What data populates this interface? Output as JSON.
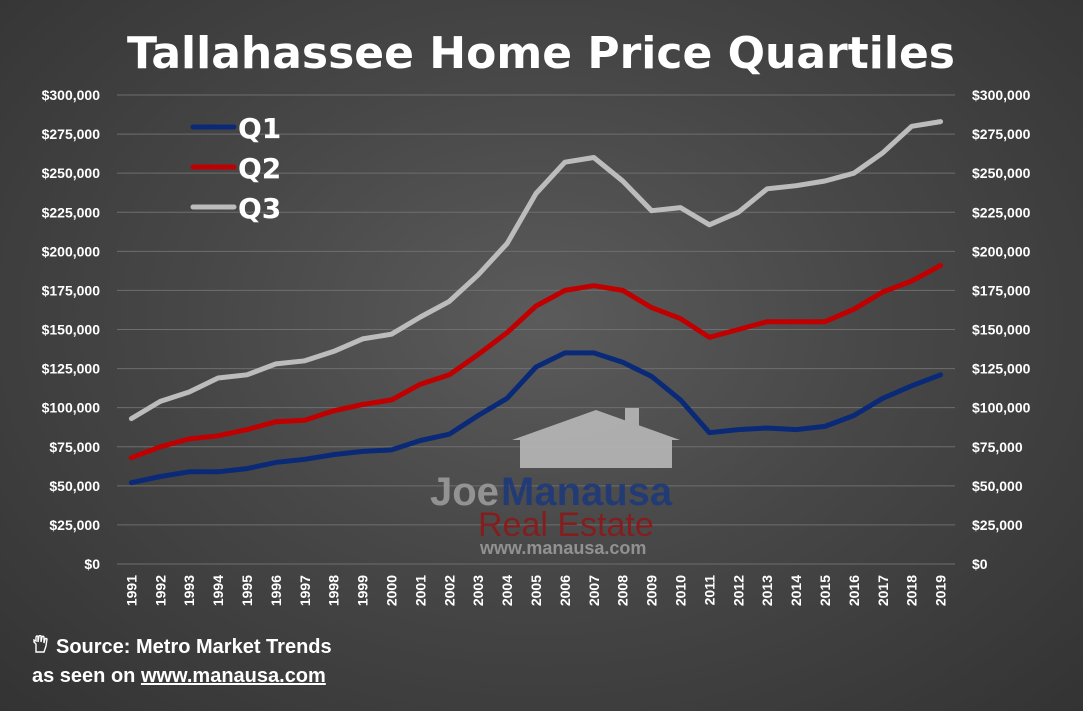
{
  "chart_data": {
    "type": "line",
    "title": "Tallahassee Home Price Quartiles",
    "x": [
      "1991",
      "1992",
      "1993",
      "1994",
      "1995",
      "1996",
      "1997",
      "1998",
      "1999",
      "2000",
      "2001",
      "2002",
      "2003",
      "2004",
      "2005",
      "2006",
      "2007",
      "2008",
      "2009",
      "2010",
      "2011",
      "2012",
      "2013",
      "2014",
      "2015",
      "2016",
      "2017",
      "2018",
      "2019"
    ],
    "series": [
      {
        "name": "Q1",
        "color": "#0a2a78",
        "values": [
          52000,
          56000,
          59000,
          59000,
          61000,
          65000,
          67000,
          70000,
          72000,
          73000,
          79000,
          83000,
          95000,
          106000,
          126000,
          135000,
          135000,
          129000,
          120000,
          105000,
          84000,
          86000,
          87000,
          86000,
          88000,
          95000,
          106000,
          114000,
          121000
        ]
      },
      {
        "name": "Q2",
        "color": "#c00000",
        "values": [
          68000,
          75000,
          80000,
          82000,
          86000,
          91000,
          92000,
          98000,
          102000,
          105000,
          115000,
          121000,
          134000,
          148000,
          165000,
          175000,
          178000,
          175000,
          164000,
          157000,
          145000,
          150000,
          155000,
          155000,
          155000,
          163000,
          174000,
          181000,
          191000
        ]
      },
      {
        "name": "Q3",
        "color": "#bcbcbc",
        "values": [
          93000,
          104000,
          110000,
          119000,
          121000,
          128000,
          130000,
          136000,
          144000,
          147000,
          158000,
          168000,
          185000,
          205000,
          237000,
          257000,
          260000,
          245000,
          226000,
          228000,
          217000,
          225000,
          240000,
          242000,
          245000,
          250000,
          263000,
          280000,
          283000
        ]
      }
    ],
    "ylim": [
      0,
      300000
    ],
    "yticks": [
      "$0",
      "$25,000",
      "$50,000",
      "$75,000",
      "$100,000",
      "$125,000",
      "$150,000",
      "$175,000",
      "$200,000",
      "$225,000",
      "$250,000",
      "$275,000",
      "$300,000"
    ],
    "grid": true,
    "legend": "top-left"
  },
  "watermark": {
    "line1_part1": "Joe",
    "line1_part2": "Manausa",
    "line2": "Real Estate",
    "line3": "www.manausa.com"
  },
  "footer": {
    "source": "Source: Metro Market Trends",
    "seen_prefix": "as seen on ",
    "seen_url": "www.manausa.com"
  },
  "icons": {
    "source_icon": "hand-pointer-icon"
  }
}
